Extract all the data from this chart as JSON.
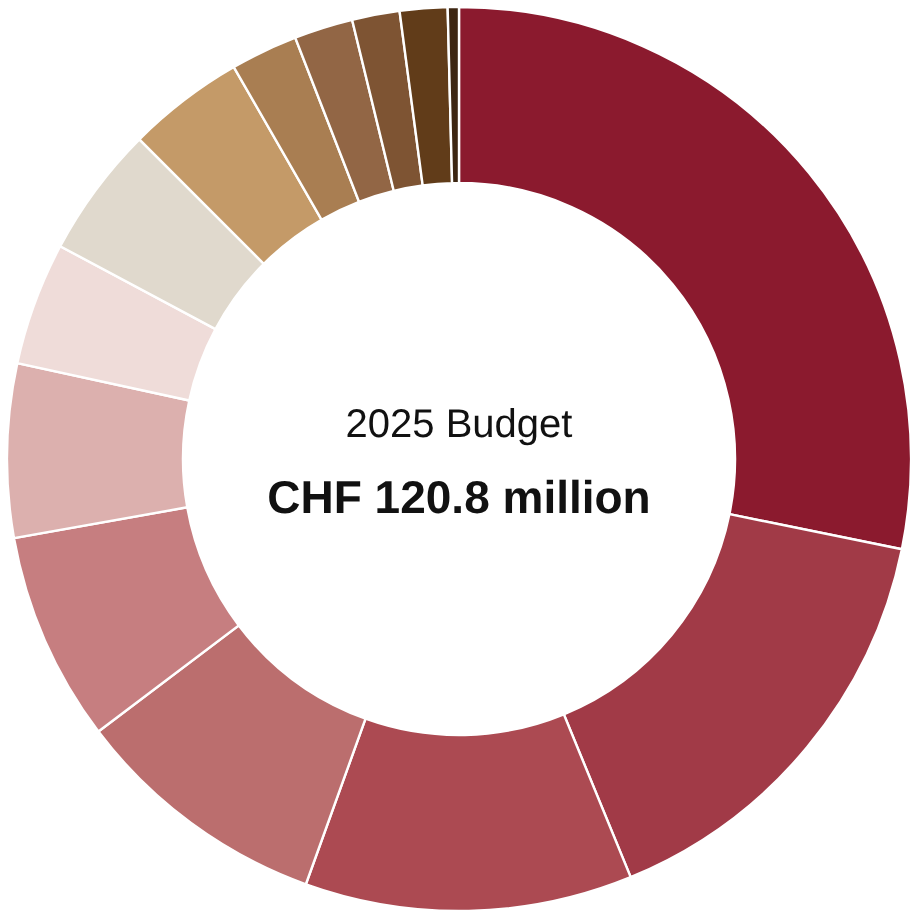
{
  "chart_data": {
    "type": "donut",
    "title": "2025 Budget",
    "subtitle": "CHF 120.8 million",
    "categories": [
      null,
      null,
      null,
      null,
      null,
      null,
      null,
      null,
      null,
      null,
      null,
      null,
      null,
      null
    ],
    "values": [
      28.2,
      15.6,
      11.7,
      9.2,
      7.5,
      6.2,
      4.4,
      4.7,
      4.2,
      2.4,
      2.1,
      1.7,
      1.7,
      0.4
    ],
    "colors": [
      "#8b1a2e",
      "#a13a47",
      "#ac4a52",
      "#bb6e6e",
      "#c67e80",
      "#dcb0ae",
      "#efdcd9",
      "#e0d9cd",
      "#c49a68",
      "#a97e52",
      "#926645",
      "#7e5433",
      "#613c19",
      "#3d2612"
    ],
    "legend": false
  }
}
